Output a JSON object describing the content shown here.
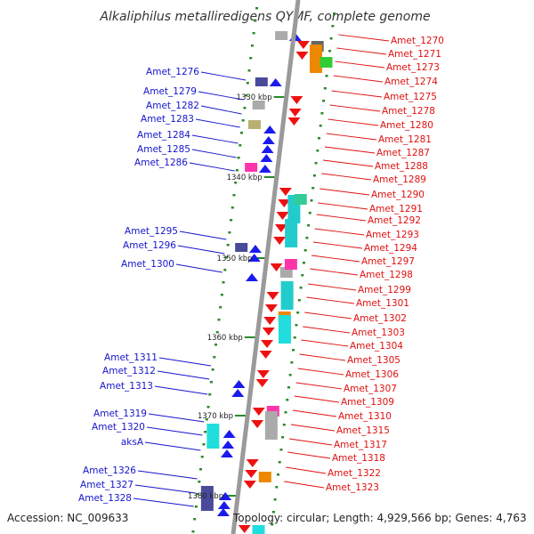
{
  "title": "Alkaliphilus metalliredigens QYMF, complete genome",
  "footer": {
    "accession": "Accession: NC_009633",
    "summary": "Topology: circular; Length: 4,929,566 bp; Genes: 4,763"
  },
  "colors": {
    "backbone": "#9a9a9a",
    "forward_gene": "#1a1aee",
    "reverse_gene": "#ee1111",
    "left_label": "#1515cc",
    "right_label": "#e01010",
    "tick": "#2a8a2a"
  },
  "scale_labels": [
    "1330 kbp",
    "1340 kbp",
    "1350 kbp",
    "1360 kbp",
    "1370 kbp",
    "1380 kbp"
  ],
  "left_genes": [
    "Amet_1276",
    "Amet_1279",
    "Amet_1282",
    "Amet_1283",
    "Amet_1284",
    "Amet_1285",
    "Amet_1286",
    "Amet_1295",
    "Amet_1296",
    "Amet_1300",
    "Amet_1311",
    "Amet_1312",
    "Amet_1313",
    "Amet_1319",
    "Amet_1320",
    "aksA",
    "Amet_1326",
    "Amet_1327",
    "Amet_1328"
  ],
  "right_genes": [
    "Amet_1270",
    "Amet_1271",
    "Amet_1273",
    "Amet_1274",
    "Amet_1275",
    "Amet_1278",
    "Amet_1280",
    "Amet_1281",
    "Amet_1287",
    "Amet_1288",
    "Amet_1289",
    "Amet_1290",
    "Amet_1291",
    "Amet_1292",
    "Amet_1293",
    "Amet_1294",
    "Amet_1297",
    "Amet_1298",
    "Amet_1299",
    "Amet_1301",
    "Amet_1302",
    "Amet_1303",
    "Amet_1304",
    "Amet_1305",
    "Amet_1306",
    "Amet_1307",
    "Amet_1309",
    "Amet_1310",
    "Amet_1315",
    "Amet_1317",
    "Amet_1318",
    "Amet_1322",
    "Amet_1323"
  ]
}
